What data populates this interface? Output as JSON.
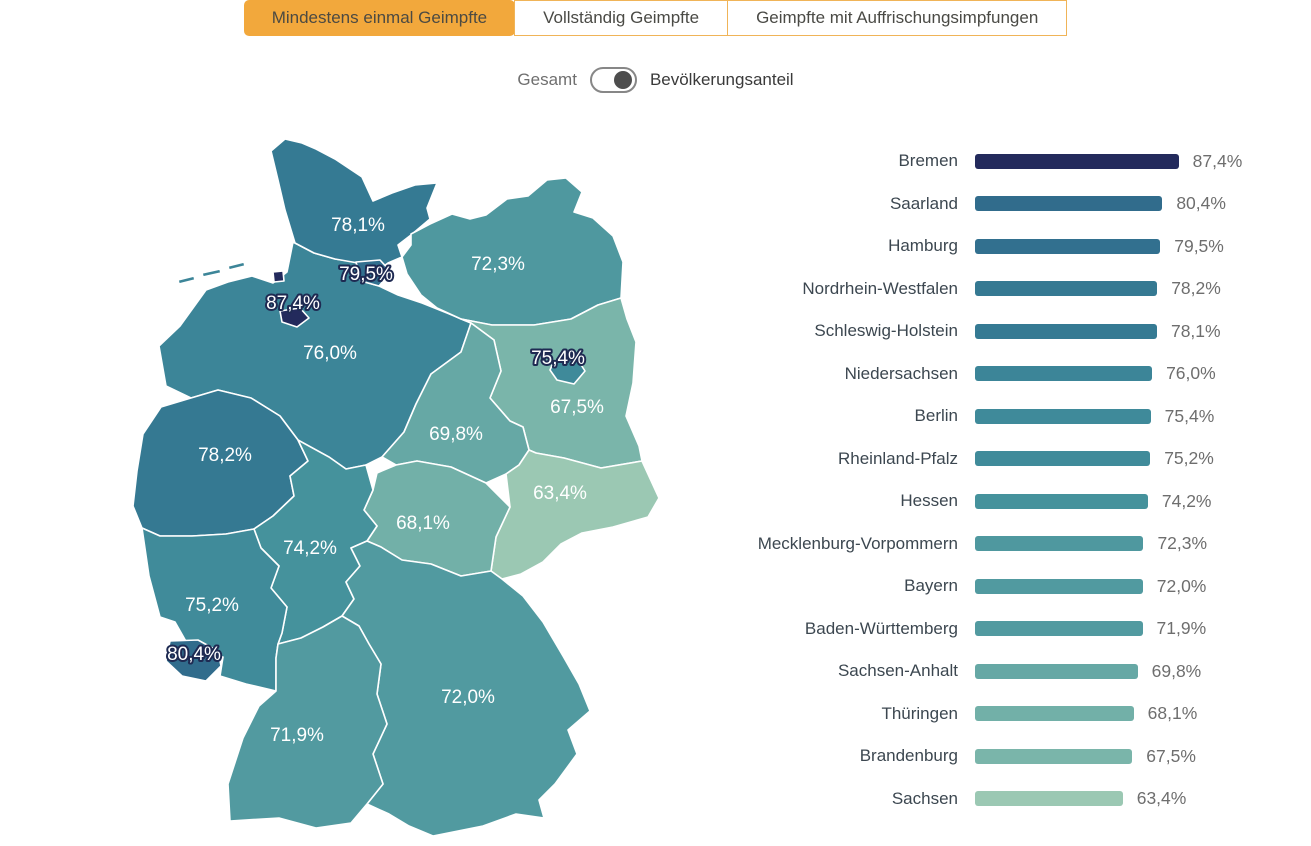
{
  "tabs": [
    {
      "key": "mindestens-einmal-geimpfte",
      "label": "Mindestens einmal Geimpfte",
      "active": true
    },
    {
      "key": "vollstaendig-geimpfte",
      "label": "Vollständig Geimpfte",
      "active": false
    },
    {
      "key": "auffrischungsimpfungen",
      "label": "Geimpfte mit Auffrischungsimpfungen",
      "active": false
    }
  ],
  "toggle": {
    "left_label": "Gesamt",
    "right_label": "Bevölkerungsanteil",
    "selected": "right"
  },
  "colors": {
    "active_tab_bg": "#F2A83C",
    "tab_border": "#F0B458",
    "bar_label_text": "#3C4750",
    "bar_value_text": "#6E6E6E",
    "map_label_outline": "#1E2A52"
  },
  "chart_data": {
    "type": "bar",
    "orientation": "horizontal",
    "unit": "%",
    "xlim": [
      0,
      100
    ],
    "legend": "none",
    "grid": false,
    "categories": [
      "Bremen",
      "Saarland",
      "Hamburg",
      "Nordrhein-Westfalen",
      "Schleswig-Holstein",
      "Niedersachsen",
      "Berlin",
      "Rheinland-Pfalz",
      "Hessen",
      "Mecklenburg-Vorpommern",
      "Bayern",
      "Baden-Württemberg",
      "Sachsen-Anhalt",
      "Thüringen",
      "Brandenburg",
      "Sachsen"
    ],
    "values": [
      87.4,
      80.4,
      79.5,
      78.2,
      78.1,
      76.0,
      75.4,
      75.2,
      74.2,
      72.3,
      72.0,
      71.9,
      69.8,
      68.1,
      67.5,
      63.4
    ],
    "value_labels": [
      "87,4%",
      "80,4%",
      "79,5%",
      "78,2%",
      "78,1%",
      "76,0%",
      "75,4%",
      "75,2%",
      "74,2%",
      "72,3%",
      "72,0%",
      "71,9%",
      "69,8%",
      "68,1%",
      "67,5%",
      "63,4%"
    ],
    "bar_colors": [
      "#232A5C",
      "#316C8C",
      "#32708F",
      "#357992",
      "#357A93",
      "#3C8598",
      "#3F8A9A",
      "#408B9A",
      "#45929C",
      "#4F989F",
      "#519AA0",
      "#529AA0",
      "#66A8A5",
      "#72B0A8",
      "#7AB5AA",
      "#9BC8B3"
    ]
  },
  "map": {
    "region": "Deutschland — Bundesländer",
    "states": [
      {
        "key": "SH",
        "name": "Schleswig-Holstein",
        "value": 78.1,
        "value_label": "78,1%",
        "color": "#357A93",
        "outlined": false
      },
      {
        "key": "MV",
        "name": "Mecklenburg-Vorpommern",
        "value": 72.3,
        "value_label": "72,3%",
        "color": "#4F989F",
        "outlined": false
      },
      {
        "key": "NI",
        "name": "Niedersachsen",
        "value": 76.0,
        "value_label": "76,0%",
        "color": "#3C8598",
        "outlined": false
      },
      {
        "key": "HH",
        "name": "Hamburg",
        "value": 79.5,
        "value_label": "79,5%",
        "color": "#32708F",
        "outlined": true
      },
      {
        "key": "HB",
        "name": "Bremen",
        "value": 87.4,
        "value_label": "87,4%",
        "color": "#232A5C",
        "outlined": true
      },
      {
        "key": "BB",
        "name": "Brandenburg",
        "value": 67.5,
        "value_label": "67,5%",
        "color": "#7AB5AA",
        "outlined": false
      },
      {
        "key": "BE",
        "name": "Berlin",
        "value": 75.4,
        "value_label": "75,4%",
        "color": "#3F8A9A",
        "outlined": true
      },
      {
        "key": "ST",
        "name": "Sachsen-Anhalt",
        "value": 69.8,
        "value_label": "69,8%",
        "color": "#66A8A5",
        "outlined": false
      },
      {
        "key": "SN",
        "name": "Sachsen",
        "value": 63.4,
        "value_label": "63,4%",
        "color": "#9BC8B3",
        "outlined": false
      },
      {
        "key": "TH",
        "name": "Thüringen",
        "value": 68.1,
        "value_label": "68,1%",
        "color": "#72B0A8",
        "outlined": false
      },
      {
        "key": "NW",
        "name": "Nordrhein-Westfalen",
        "value": 78.2,
        "value_label": "78,2%",
        "color": "#357992",
        "outlined": false
      },
      {
        "key": "HE",
        "name": "Hessen",
        "value": 74.2,
        "value_label": "74,2%",
        "color": "#45929C",
        "outlined": false
      },
      {
        "key": "RP",
        "name": "Rheinland-Pfalz",
        "value": 75.2,
        "value_label": "75,2%",
        "color": "#408B9A",
        "outlined": false
      },
      {
        "key": "SL",
        "name": "Saarland",
        "value": 80.4,
        "value_label": "80,4%",
        "color": "#316C8C",
        "outlined": true
      },
      {
        "key": "BW",
        "name": "Baden-Württemberg",
        "value": 71.9,
        "value_label": "71,9%",
        "color": "#529AA0",
        "outlined": false
      },
      {
        "key": "BY",
        "name": "Bayern",
        "value": 72.0,
        "value_label": "72,0%",
        "color": "#519AA0",
        "outlined": false
      }
    ]
  }
}
